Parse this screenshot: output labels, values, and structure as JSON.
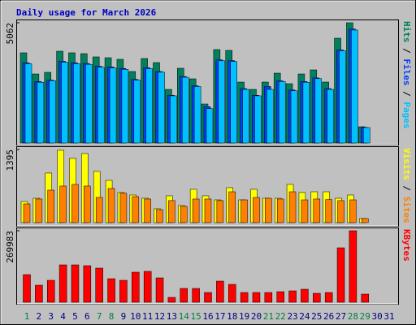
{
  "chart_data": [
    {
      "type": "bar",
      "title": "Daily usage for March 2026",
      "separator": " / ",
      "ylim": [
        0,
        5062
      ],
      "yticks": [
        5062
      ],
      "series": [
        {
          "name": "Hits",
          "color": "#00805c",
          "values": [
            3797,
            2907,
            2976,
            3865,
            3797,
            3762,
            3626,
            3591,
            3523,
            3010,
            3557,
            3386,
            2257,
            3147,
            2702,
            1642,
            3933,
            3899,
            2565,
            2257,
            2565,
            2941,
            2497,
            2907,
            3078,
            2565,
            4412,
            5062,
            684,
            0,
            0
          ]
        },
        {
          "name": "Files",
          "color": "#0040ff",
          "values": [
            3380,
            2590,
            2650,
            3440,
            3380,
            3350,
            3230,
            3200,
            3140,
            2680,
            3170,
            3010,
            2010,
            2800,
            2410,
            1530,
            3500,
            3470,
            2290,
            2010,
            2380,
            2620,
            2230,
            2590,
            2740,
            2290,
            3920,
            4800,
            660,
            0,
            0
          ]
        },
        {
          "name": "Pages",
          "color": "#00c0ff",
          "values": [
            3341,
            2558,
            2619,
            3401,
            3341,
            3311,
            3191,
            3160,
            3100,
            2649,
            3130,
            2980,
            1986,
            2769,
            2378,
            1445,
            3461,
            3431,
            2257,
            1986,
            2257,
            2588,
            2197,
            2558,
            2709,
            2257,
            3883,
            4755,
            650,
            0,
            0
          ]
        }
      ]
    },
    {
      "type": "bar",
      "ylim": [
        0,
        1395
      ],
      "yticks": [
        1395
      ],
      "series": [
        {
          "name": "Visits",
          "color": "#ffff00",
          "values": [
            403,
            465,
            946,
            1380,
            1225,
            1318,
            977,
            806,
            574,
            527,
            465,
            264,
            512,
            326,
            636,
            512,
            434,
            667,
            434,
            636,
            465,
            465,
            729,
            574,
            589,
            589,
            465,
            527,
            78,
            0,
            0
          ]
        },
        {
          "name": "Sites",
          "color": "#ff8000",
          "values": [
            357,
            450,
            620,
            698,
            729,
            698,
            481,
            651,
            560,
            496,
            450,
            248,
            420,
            310,
            450,
            450,
            420,
            589,
            434,
            480,
            465,
            450,
            589,
            434,
            450,
            440,
            420,
            434,
            78,
            0,
            0
          ]
        }
      ]
    },
    {
      "type": "bar",
      "ylim": [
        0,
        269983
      ],
      "yticks": [
        269983
      ],
      "categories": [
        "1",
        "2",
        "3",
        "4",
        "5",
        "6",
        "7",
        "8",
        "9",
        "10",
        "11",
        "12",
        "13",
        "14",
        "15",
        "16",
        "17",
        "18",
        "19",
        "20",
        "21",
        "22",
        "23",
        "24",
        "25",
        "26",
        "27",
        "28",
        "29",
        "30",
        "31"
      ],
      "category_colors": [
        "#008040",
        "#000080",
        "#000080",
        "#000080",
        "#000080",
        "#000080",
        "#008040",
        "#008040",
        "#000080",
        "#000080",
        "#000080",
        "#000080",
        "#000080",
        "#008040",
        "#008040",
        "#000080",
        "#000080",
        "#000080",
        "#000080",
        "#000080",
        "#008040",
        "#008040",
        "#000080",
        "#000080",
        "#000080",
        "#000080",
        "#000080",
        "#008040",
        "#008040",
        "#000080",
        "#000080"
      ],
      "series": [
        {
          "name": "KBytes",
          "color": "#ff0000",
          "values": [
            104312,
            64428,
            82835,
            141128,
            141128,
            138060,
            128856,
            88971,
            82835,
            113516,
            116584,
            92040,
            18408,
            52156,
            52156,
            36816,
            79767,
            67496,
            36816,
            36816,
            36816,
            39884,
            42952,
            49088,
            33748,
            36816,
            205555,
            269983,
            30680,
            0,
            0
          ]
        }
      ]
    }
  ]
}
